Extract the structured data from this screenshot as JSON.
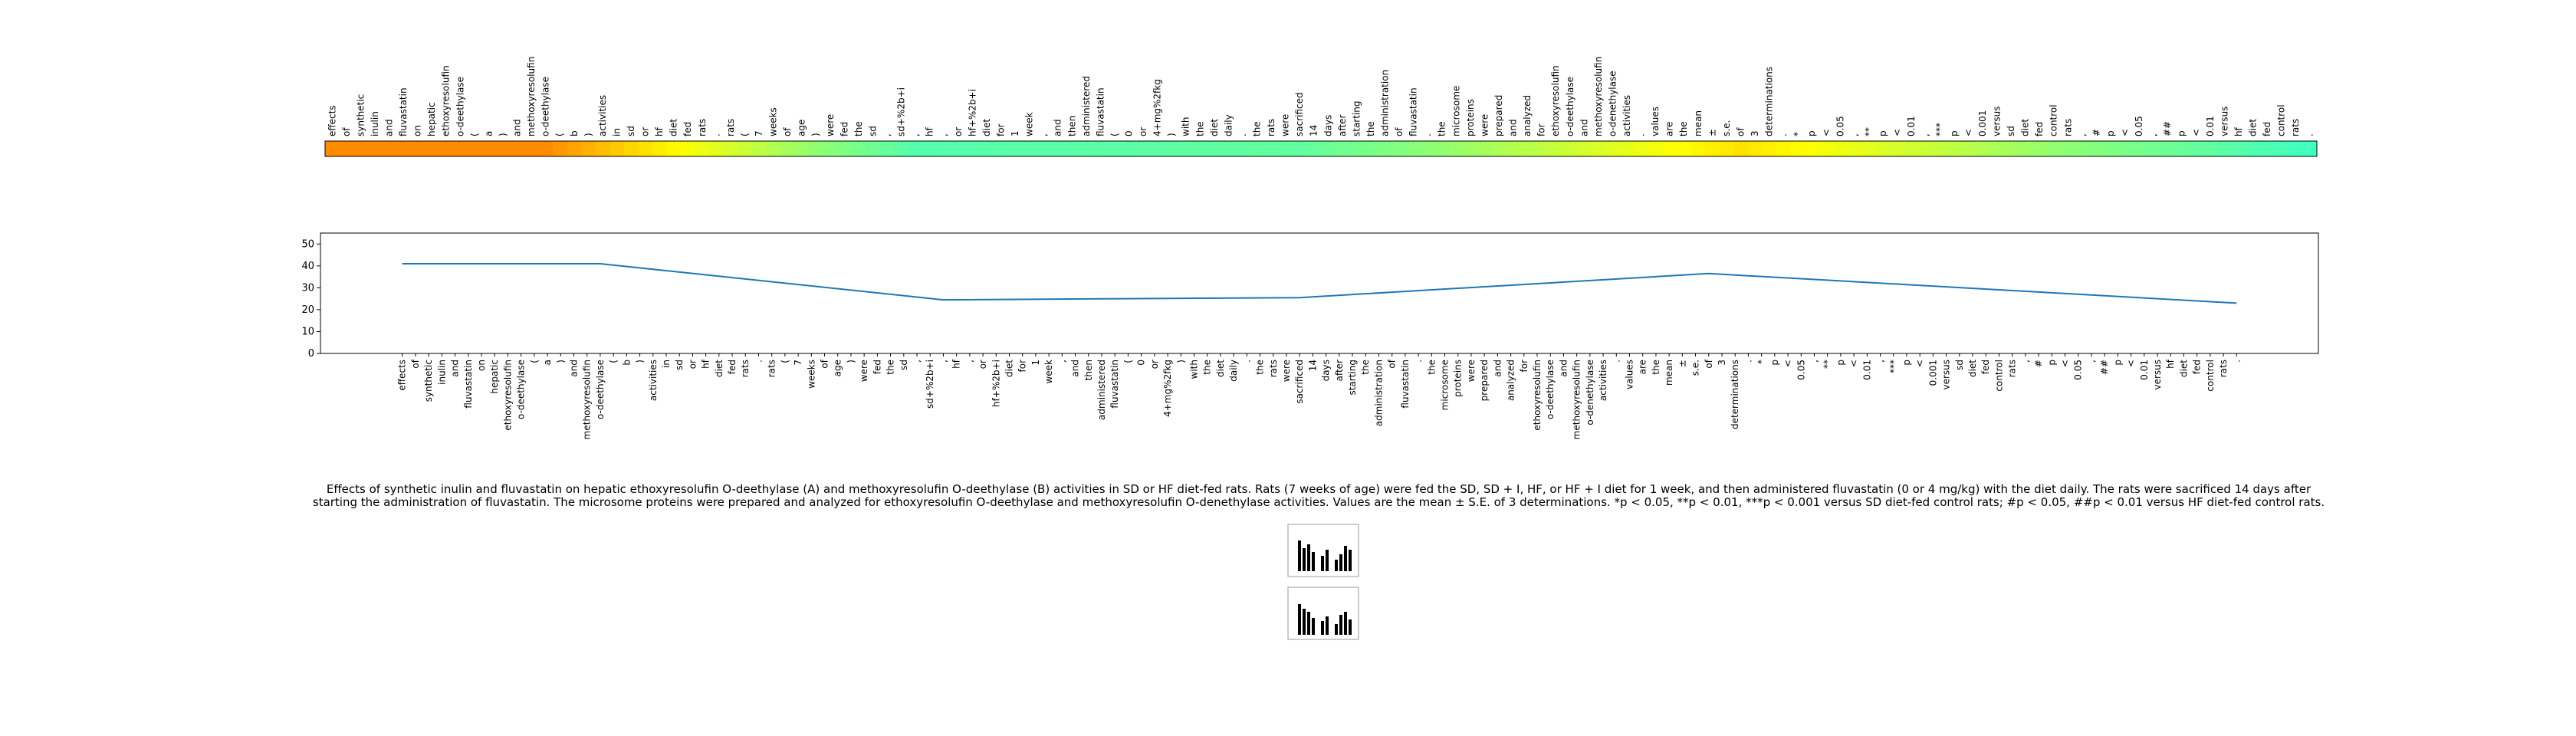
{
  "tokens": [
    "effects",
    "of",
    "synthetic",
    "inulin",
    "and",
    "fluvastatin",
    "on",
    "hepatic",
    "ethoxyresolufin",
    "o-deethylase",
    "(",
    "a",
    ")",
    "and",
    "methoxyresolufin",
    "o-deethylase",
    "(",
    "b",
    ")",
    "activities",
    "in",
    "sd",
    "or",
    "hf",
    "diet",
    "fed",
    "rats",
    ".",
    "rats",
    "(",
    "7",
    "weeks",
    "of",
    "age",
    ")",
    "were",
    "fed",
    "the",
    "sd",
    ",",
    "sd+%2b+i",
    ",",
    "hf",
    ",",
    "or",
    "hf+%2b+i",
    "diet",
    "for",
    "1",
    "week",
    ",",
    "and",
    "then",
    "administered",
    "fluvastatin",
    "(",
    "0",
    "or",
    "4+mg%2fkg",
    ")",
    "with",
    "the",
    "diet",
    "daily",
    ".",
    "the",
    "rats",
    "were",
    "sacrificed",
    "14",
    "days",
    "after",
    "starting",
    "the",
    "administration",
    "of",
    "fluvastatin",
    ".",
    "the",
    "microsome",
    "proteins",
    "were",
    "prepared",
    "and",
    "analyzed",
    "for",
    "ethoxyresolufin",
    "o-deethylase",
    "and",
    "methoxyresolufin",
    "o-denethylase",
    "activities",
    ".",
    "values",
    "are",
    "the",
    "mean",
    "±",
    "s.e.",
    "of",
    "3",
    "determinations",
    ".",
    "*",
    "p",
    "<",
    "0.05",
    ",",
    "**",
    "p",
    "<",
    "0.01",
    ",",
    "***",
    "p",
    "<",
    "0.001",
    "versus",
    "sd",
    "diet",
    "fed",
    "control",
    "rats",
    ",",
    "#",
    "p",
    "<",
    "0.05",
    ",",
    "##",
    "p",
    "<",
    "0.01",
    "versus",
    "hf",
    "diet",
    "fed",
    "control",
    "rats",
    "."
  ],
  "chart_data": {
    "type": "line",
    "x": [
      0,
      15,
      41,
      68,
      99,
      139
    ],
    "values": [
      41,
      41,
      24.5,
      25.5,
      36.5,
      23
    ],
    "color": "#1f77b4",
    "xlim": [
      -6.2,
      145.2
    ],
    "ylim": [
      0,
      55
    ],
    "yticks": [
      0,
      10,
      20,
      30,
      40,
      50
    ],
    "colormap": [
      "#40ffc0",
      "#90ff70",
      "#ffff00",
      "#ff8c00"
    ]
  },
  "caption": "Effects of synthetic inulin and fluvastatin on hepatic ethoxyresolufin O-deethylase (A) and methoxyresolufin O-deethylase (B) activities in SD or HF diet-fed rats. Rats (7 weeks of age) were fed the SD, SD + I, HF, or HF + I diet for 1 week, and then administered fluvastatin (0 or 4 mg/kg) with the diet daily. The rats were sacrificed 14 days after starting the administration of fluvastatin. The microsome proteins were prepared and analyzed for ethoxyresolufin O-deethylase and methoxyresolufin O-denethylase activities. Values are the mean ± S.E. of 3 determinations. *p < 0.05, **p < 0.01, ***p < 0.001 versus SD diet-fed control rats; #p < 0.05, ##p < 0.01 versus HF diet-fed control rats."
}
